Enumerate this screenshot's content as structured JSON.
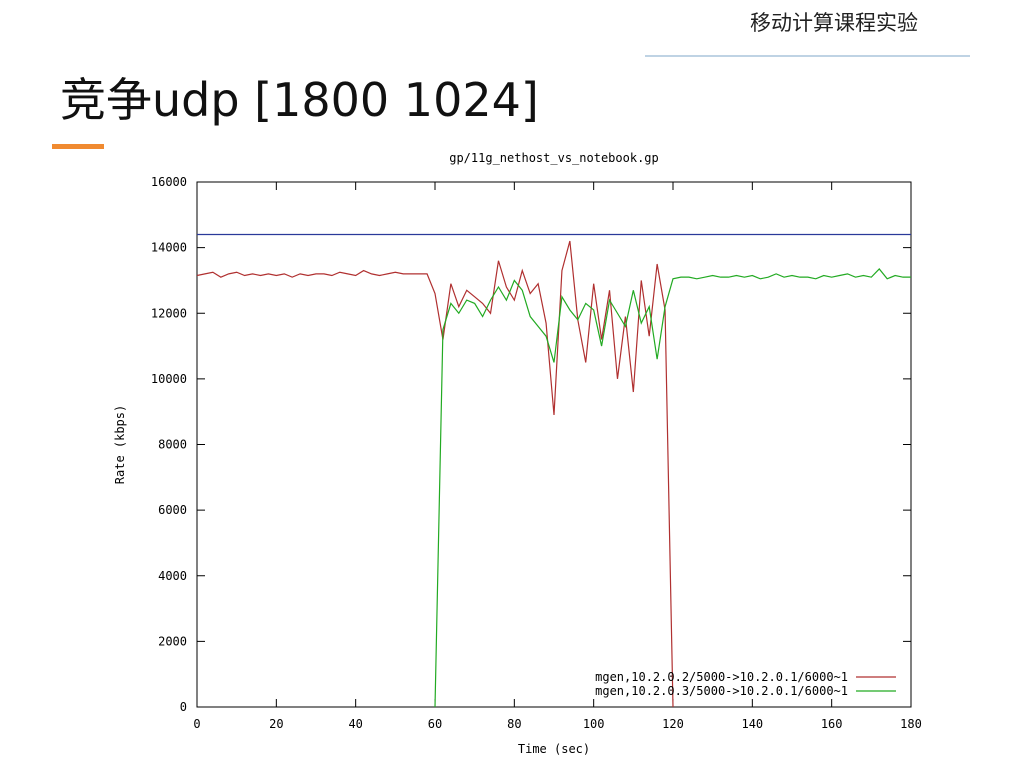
{
  "header": "移动计算课程实验",
  "slide_title": "竞争udp [1800 1024]",
  "chart_data": {
    "type": "line",
    "title": "gp/11g_nethost_vs_notebook.gp",
    "x_label": "Time (sec)",
    "y_label": "Rate (kbps)",
    "xlim": [
      0,
      180
    ],
    "ylim": [
      0,
      16000
    ],
    "xticks": [
      0,
      20,
      40,
      60,
      80,
      100,
      120,
      140,
      160,
      180
    ],
    "yticks": [
      0,
      2000,
      4000,
      6000,
      8000,
      10000,
      12000,
      14000,
      16000
    ],
    "legend_position": "lower right",
    "series": [
      {
        "name": "mgen,10.2.0.2/5000->10.2.0.1/6000~1",
        "color": "#b03030",
        "x": [
          0,
          2,
          4,
          6,
          8,
          10,
          12,
          14,
          16,
          18,
          20,
          22,
          24,
          26,
          28,
          30,
          32,
          34,
          36,
          38,
          40,
          42,
          44,
          46,
          48,
          50,
          52,
          54,
          56,
          58,
          60,
          62,
          64,
          66,
          68,
          70,
          72,
          74,
          76,
          78,
          80,
          82,
          84,
          86,
          88,
          90,
          92,
          94,
          96,
          98,
          100,
          102,
          104,
          106,
          108,
          110,
          112,
          114,
          116,
          118,
          120
        ],
        "values": [
          13150,
          13200,
          13250,
          13100,
          13200,
          13250,
          13150,
          13200,
          13150,
          13200,
          13150,
          13200,
          13100,
          13200,
          13150,
          13200,
          13200,
          13150,
          13250,
          13200,
          13150,
          13300,
          13200,
          13150,
          13200,
          13250,
          13200,
          13200,
          13200,
          13200,
          12600,
          11200,
          12900,
          12200,
          12700,
          12500,
          12300,
          12000,
          13600,
          12800,
          12400,
          13300,
          12600,
          12900,
          11700,
          8900,
          13300,
          14200,
          11800,
          10500,
          12900,
          11200,
          12700,
          10000,
          11900,
          9600,
          13000,
          11300,
          13500,
          12100,
          0
        ]
      },
      {
        "name": "mgen,10.2.0.3/5000->10.2.0.1/6000~1",
        "color": "#22aa22",
        "x": [
          60,
          62,
          64,
          66,
          68,
          70,
          72,
          74,
          76,
          78,
          80,
          82,
          84,
          86,
          88,
          90,
          92,
          94,
          96,
          98,
          100,
          102,
          104,
          106,
          108,
          110,
          112,
          114,
          116,
          118,
          120,
          122,
          124,
          126,
          128,
          130,
          132,
          134,
          136,
          138,
          140,
          142,
          144,
          146,
          148,
          150,
          152,
          154,
          156,
          158,
          160,
          162,
          164,
          166,
          168,
          170,
          172,
          174,
          176,
          178,
          180
        ],
        "values": [
          0,
          11500,
          12300,
          12000,
          12400,
          12300,
          11900,
          12400,
          12800,
          12400,
          13000,
          12700,
          11900,
          11600,
          11300,
          10500,
          12500,
          12100,
          11800,
          12300,
          12100,
          11000,
          12400,
          12000,
          11600,
          12700,
          11700,
          12200,
          10600,
          12200,
          13050,
          13100,
          13100,
          13050,
          13100,
          13150,
          13100,
          13100,
          13150,
          13100,
          13150,
          13050,
          13100,
          13200,
          13100,
          13150,
          13100,
          13100,
          13050,
          13150,
          13100,
          13150,
          13200,
          13100,
          13150,
          13100,
          13350,
          13050,
          13150,
          13100,
          13100
        ]
      },
      {
        "color": "#2a3a9a",
        "x": [
          0,
          180
        ],
        "values": [
          14400,
          14400
        ]
      }
    ]
  }
}
